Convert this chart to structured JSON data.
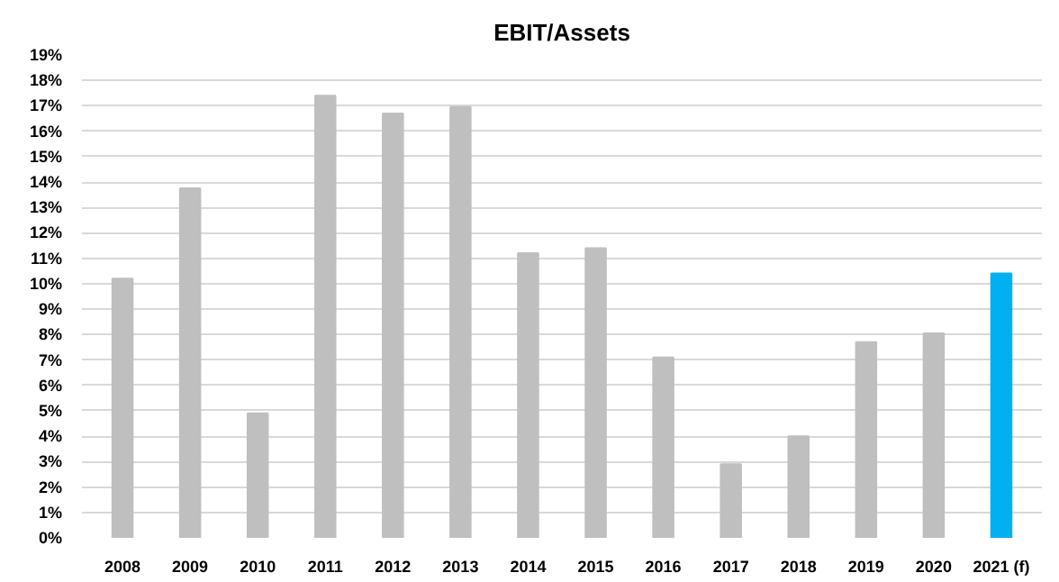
{
  "chart_data": {
    "type": "bar",
    "title": "EBIT/Assets",
    "categories": [
      "2008",
      "2009",
      "2010",
      "2011",
      "2012",
      "2013",
      "2014",
      "2015",
      "2016",
      "2017",
      "2018",
      "2019",
      "2020",
      "2021 (f)"
    ],
    "values": [
      10.2,
      13.75,
      4.9,
      17.4,
      16.7,
      16.95,
      11.2,
      11.4,
      7.1,
      2.9,
      4.0,
      7.7,
      8.05,
      10.4
    ],
    "colors": [
      "#bfbfbf",
      "#bfbfbf",
      "#bfbfbf",
      "#bfbfbf",
      "#bfbfbf",
      "#bfbfbf",
      "#bfbfbf",
      "#bfbfbf",
      "#bfbfbf",
      "#bfbfbf",
      "#bfbfbf",
      "#bfbfbf",
      "#bfbfbf",
      "#00b0f0"
    ],
    "ylim": [
      0,
      19
    ],
    "yticks": [
      {
        "value": 0,
        "label": "0%"
      },
      {
        "value": 1,
        "label": "1%"
      },
      {
        "value": 2,
        "label": "2%"
      },
      {
        "value": 3,
        "label": "3%"
      },
      {
        "value": 4,
        "label": "4%"
      },
      {
        "value": 5,
        "label": "5%"
      },
      {
        "value": 6,
        "label": "6%"
      },
      {
        "value": 7,
        "label": "7%"
      },
      {
        "value": 8,
        "label": "8%"
      },
      {
        "value": 9,
        "label": "9%"
      },
      {
        "value": 10,
        "label": "10%"
      },
      {
        "value": 11,
        "label": "11%"
      },
      {
        "value": 12,
        "label": "12%"
      },
      {
        "value": 13,
        "label": "13%"
      },
      {
        "value": 14,
        "label": "14%"
      },
      {
        "value": 15,
        "label": "15%"
      },
      {
        "value": 16,
        "label": "16%"
      },
      {
        "value": 17,
        "label": "17%"
      },
      {
        "value": 18,
        "label": "18%"
      },
      {
        "value": 19,
        "label": "19%"
      }
    ],
    "grid": "y"
  }
}
